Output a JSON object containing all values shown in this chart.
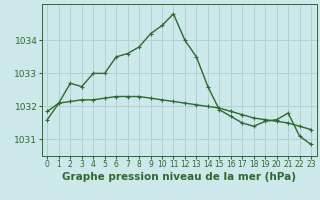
{
  "title": "Graphe pression niveau de la mer (hPa)",
  "xlabel_hours": [
    0,
    1,
    2,
    3,
    4,
    5,
    6,
    7,
    8,
    9,
    10,
    11,
    12,
    13,
    14,
    15,
    16,
    17,
    18,
    19,
    20,
    21,
    22,
    23
  ],
  "line1": [
    1031.6,
    1032.1,
    1032.7,
    1032.6,
    1033.0,
    1033.0,
    1033.5,
    1033.6,
    1033.8,
    1034.2,
    1034.45,
    1034.8,
    1034.0,
    1033.5,
    1032.6,
    1031.9,
    1031.7,
    1031.5,
    1031.4,
    1031.55,
    1031.6,
    1031.8,
    1031.1,
    1030.85
  ],
  "line2": [
    1031.85,
    1032.1,
    1032.15,
    1032.2,
    1032.2,
    1032.25,
    1032.3,
    1032.3,
    1032.3,
    1032.25,
    1032.2,
    1032.15,
    1032.1,
    1032.05,
    1032.0,
    1031.95,
    1031.85,
    1031.75,
    1031.65,
    1031.6,
    1031.55,
    1031.5,
    1031.4,
    1031.3
  ],
  "line_color": "#2d6a2d",
  "bg_color": "#cce8ea",
  "grid_color": "#b0d0d2",
  "ylim": [
    1030.5,
    1035.1
  ],
  "yticks": [
    1031,
    1032,
    1033,
    1034
  ],
  "title_fontsize": 7.5,
  "tick_fontsize": 6.5,
  "xtick_fontsize": 5.5
}
